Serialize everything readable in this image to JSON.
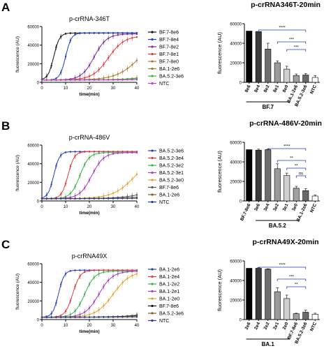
{
  "panels": [
    {
      "letter": "A",
      "line": {
        "type": "line",
        "title": "p-crRNA-346T",
        "xlabel": "time(min)",
        "ylabel": "fluorescence (AU)",
        "xlim": [
          0,
          40
        ],
        "ylim": [
          0,
          60000
        ],
        "xticks": [
          "0",
          "10",
          "20",
          "30",
          "40"
        ],
        "yticks": [
          "0",
          "20000",
          "40000",
          "60000"
        ],
        "legend_position": "right",
        "series": [
          {
            "name": "BF.7-8e6",
            "color": "#111111",
            "t_half": 5,
            "max": 53000
          },
          {
            "name": "BF.7-8e4",
            "color": "#1f3fbf",
            "t_half": 10,
            "max": 53000
          },
          {
            "name": "BF.7-8e2",
            "color": "#7a2aa6",
            "t_half": 22,
            "max": 52000
          },
          {
            "name": "BF.7-8e1",
            "color": "#e23c3c",
            "t_half": 28,
            "max": 50000
          },
          {
            "name": "BF.7-8e0",
            "color": "#b07830",
            "t_half": 42,
            "max": 55000
          },
          {
            "name": "BA.1-2e6",
            "color": "#8a8a2a",
            "t_half": 60,
            "max": 40000
          },
          {
            "name": "BA.5.2-3e6",
            "color": "#37b34a",
            "t_half": 65,
            "max": 40000
          },
          {
            "name": "NTC",
            "color": "#c03cd8",
            "t_half": 80,
            "max": 30000
          }
        ]
      },
      "bar": {
        "type": "bar",
        "title": "p-crRNA346T-20min",
        "ylabel": "fluorescence (AU)",
        "ylim": [
          0,
          60000
        ],
        "yticks": [
          "0",
          "20000",
          "40000",
          "60000"
        ],
        "categories": [
          "8e6",
          "8e4",
          "8e2",
          "8e1",
          "8e0",
          "BA.1-2e6",
          "BA.5.2-3e6",
          "NTC"
        ],
        "values": [
          52500,
          52000,
          34000,
          20000,
          13500,
          7000,
          7500,
          5000
        ],
        "errors": [
          0,
          0,
          6000,
          2000,
          3000,
          1500,
          1500,
          2000
        ],
        "colors": [
          "#000000",
          "#3a3a3a",
          "#6e6e6e",
          "#9a9a9a",
          "#d0d0d0",
          "#a0a0a0",
          "#6a6a6a",
          "#ffffff"
        ],
        "group": {
          "label": "BF.7",
          "from": 0,
          "to": 4
        },
        "significance": [
          {
            "from": 1,
            "to": 6,
            "label": "****"
          },
          {
            "from": 3,
            "to": 6,
            "label": "***"
          },
          {
            "from": 4,
            "to": 6,
            "label": "***"
          }
        ]
      }
    },
    {
      "letter": "B",
      "line": {
        "type": "line",
        "title": "p-crRNA-486V",
        "xlabel": "time(min)",
        "ylabel": "fluorescence (AU)",
        "xlim": [
          0,
          40
        ],
        "ylim": [
          0,
          60000
        ],
        "xticks": [
          "0",
          "10",
          "20",
          "30",
          "40"
        ],
        "yticks": [
          "0",
          "20000",
          "40000",
          "60000"
        ],
        "legend_position": "right",
        "series": [
          {
            "name": "BA.5.2-3e6",
            "color": "#1f3fbf",
            "t_half": 5,
            "max": 53000
          },
          {
            "name": "BA.5.2-3e4",
            "color": "#e23c3c",
            "t_half": 11,
            "max": 53000
          },
          {
            "name": "BA.5.2-3e2",
            "color": "#37b34a",
            "t_half": 16,
            "max": 52000
          },
          {
            "name": "BA.5.2-3e1",
            "color": "#a63cc8",
            "t_half": 21,
            "max": 52000
          },
          {
            "name": "BA.5.2-3e0",
            "color": "#e8a030",
            "t_half": 40,
            "max": 55000
          },
          {
            "name": "BF.7-8e6",
            "color": "#555555",
            "t_half": 55,
            "max": 45000
          },
          {
            "name": "BA.1-2e6",
            "color": "#8a5a2a",
            "t_half": 65,
            "max": 40000
          },
          {
            "name": "NTC",
            "color": "#2a3a8a",
            "t_half": 80,
            "max": 30000
          }
        ]
      },
      "bar": {
        "type": "bar",
        "title": "p-crRNA-486V-20min",
        "ylabel": "fluorescence (AU)",
        "ylim": [
          0,
          60000
        ],
        "yticks": [
          "0",
          "20000",
          "40000",
          "60000"
        ],
        "categories": [
          "BF.7-8e6",
          "3e6",
          "3e4",
          "3e2",
          "3e1",
          "3e0",
          "BA.1-2e6",
          "NTC"
        ],
        "values": [
          52500,
          52000,
          52500,
          33000,
          26000,
          13000,
          10500,
          5000
        ],
        "errors": [
          0,
          1000,
          500,
          5000,
          2500,
          2000,
          2000,
          1000
        ],
        "colors": [
          "#000000",
          "#3a3a3a",
          "#6e6e6e",
          "#9a9a9a",
          "#d0d0d0",
          "#a0a0a0",
          "#6a6a6a",
          "#ffffff"
        ],
        "group": {
          "label": "BA.5.2",
          "from": 1,
          "to": 5
        },
        "significance": [
          {
            "from": 2,
            "to": 6,
            "label": "****"
          },
          {
            "from": 3,
            "to": 6,
            "label": "**"
          },
          {
            "from": 4,
            "to": 6,
            "label": "**"
          },
          {
            "from": 5,
            "to": 6,
            "label": "ns"
          }
        ]
      }
    },
    {
      "letter": "C",
      "line": {
        "type": "line",
        "title": "p-crRNA49X",
        "xlabel": "time(min)",
        "ylabel": "fluorescence (AU)",
        "xlim": [
          0,
          40
        ],
        "ylim": [
          0,
          60000
        ],
        "xticks": [
          "0",
          "10",
          "20",
          "30",
          "40"
        ],
        "yticks": [
          "0",
          "20000",
          "40000",
          "60000"
        ],
        "legend_position": "right",
        "series": [
          {
            "name": "BA.1-2e6",
            "color": "#1f3fbf",
            "t_half": 7,
            "max": 53000
          },
          {
            "name": "BA.1-2e4",
            "color": "#e23c3c",
            "t_half": 13,
            "max": 53000
          },
          {
            "name": "BA.1-2e2",
            "color": "#37b34a",
            "t_half": 18,
            "max": 52000
          },
          {
            "name": "BA.1-2e1",
            "color": "#a63cc8",
            "t_half": 24,
            "max": 52000
          },
          {
            "name": "BA.1-2e0",
            "color": "#e8a030",
            "t_half": 30,
            "max": 52000
          },
          {
            "name": "BF.7-8e6",
            "color": "#111111",
            "t_half": 60,
            "max": 40000
          },
          {
            "name": "BA.5.2-3e6",
            "color": "#8a5a2a",
            "t_half": 65,
            "max": 38000
          },
          {
            "name": "NTC",
            "color": "#2a3a8a",
            "t_half": 80,
            "max": 30000
          }
        ]
      },
      "bar": {
        "type": "bar",
        "title": "p-crRNA49X-20min",
        "ylabel": "fluorescence (AU)",
        "ylim": [
          0,
          60000
        ],
        "yticks": [
          "0",
          "20000",
          "40000",
          "60000"
        ],
        "categories": [
          "2e6",
          "2e4",
          "2e2",
          "2e1",
          "2e0",
          "BF.7-8e6",
          "BA.5.2-3e6",
          "NTC"
        ],
        "values": [
          52500,
          52500,
          51500,
          28500,
          21500,
          6000,
          7500,
          5500
        ],
        "errors": [
          0,
          500,
          500,
          4000,
          3500,
          500,
          2000,
          1000
        ],
        "colors": [
          "#000000",
          "#3a3a3a",
          "#6e6e6e",
          "#9a9a9a",
          "#d0d0d0",
          "#a0a0a0",
          "#6a6a6a",
          "#ffffff"
        ],
        "group": {
          "label": "BA.1",
          "from": 0,
          "to": 4
        },
        "significance": [
          {
            "from": 1,
            "to": 6,
            "label": "****"
          },
          {
            "from": 3,
            "to": 6,
            "label": "***"
          },
          {
            "from": 4,
            "to": 6,
            "label": "**"
          }
        ]
      }
    }
  ]
}
